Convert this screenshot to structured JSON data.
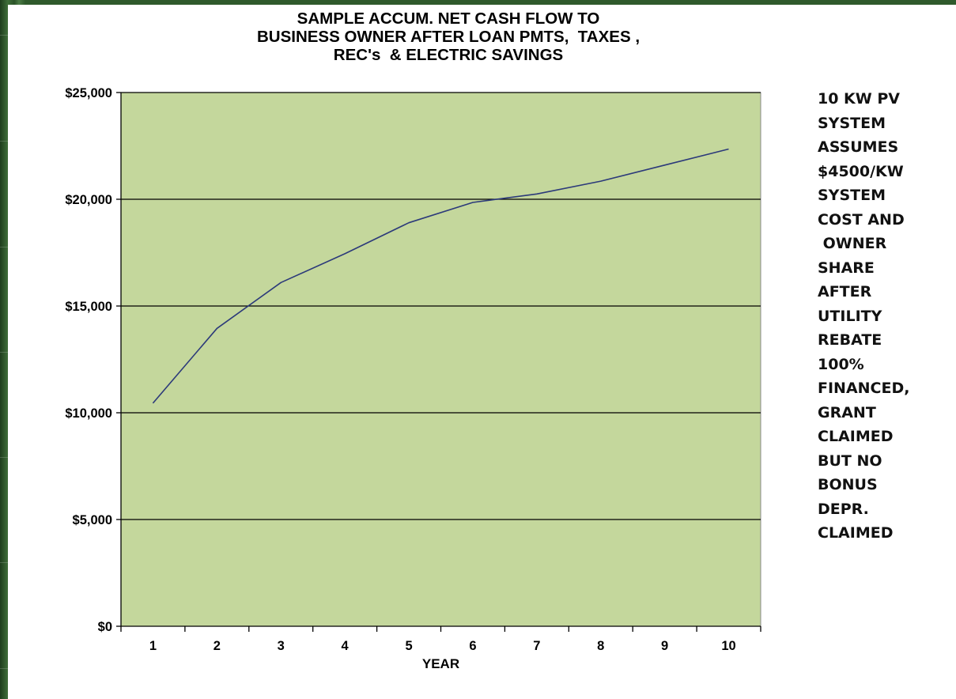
{
  "chart_data": {
    "type": "line",
    "title": [
      "SAMPLE ACCUM. NET CASH FLOW TO",
      "BUSINESS OWNER AFTER LOAN PMTS,  TAXES ,",
      "REC's  & ELECTRIC SAVINGS"
    ],
    "xlabel": "YEAR",
    "ylabel": "",
    "categories": [
      "1",
      "2",
      "3",
      "4",
      "5",
      "6",
      "7",
      "8",
      "9",
      "10"
    ],
    "y_tick_labels": [
      "$0",
      "$5,000",
      "$10,000",
      "$15,000",
      "$20,000",
      "$25,000"
    ],
    "y_ticks": [
      0,
      5000,
      10000,
      15000,
      20000,
      25000
    ],
    "ylim": [
      0,
      25000
    ],
    "grid": "horizontal",
    "series": [
      {
        "values": [
          10450,
          13950,
          16100,
          17450,
          18900,
          19850,
          20250,
          20850,
          21600,
          22350
        ]
      }
    ],
    "colors": {
      "plot_background": "#c4d79c",
      "line": "#2c3a7a",
      "grid": "#000000"
    }
  },
  "side_note": {
    "lines": [
      "10 KW PV",
      "SYSTEM",
      "ASSUMES",
      "$4500/KW",
      "SYSTEM",
      "COST AND",
      " OWNER",
      "SHARE",
      "AFTER",
      "UTILITY",
      "REBATE",
      "100%",
      "FINANCED,",
      "GRANT",
      "CLAIMED",
      "BUT NO",
      "BONUS",
      "DEPR.",
      "CLAIMED"
    ]
  }
}
